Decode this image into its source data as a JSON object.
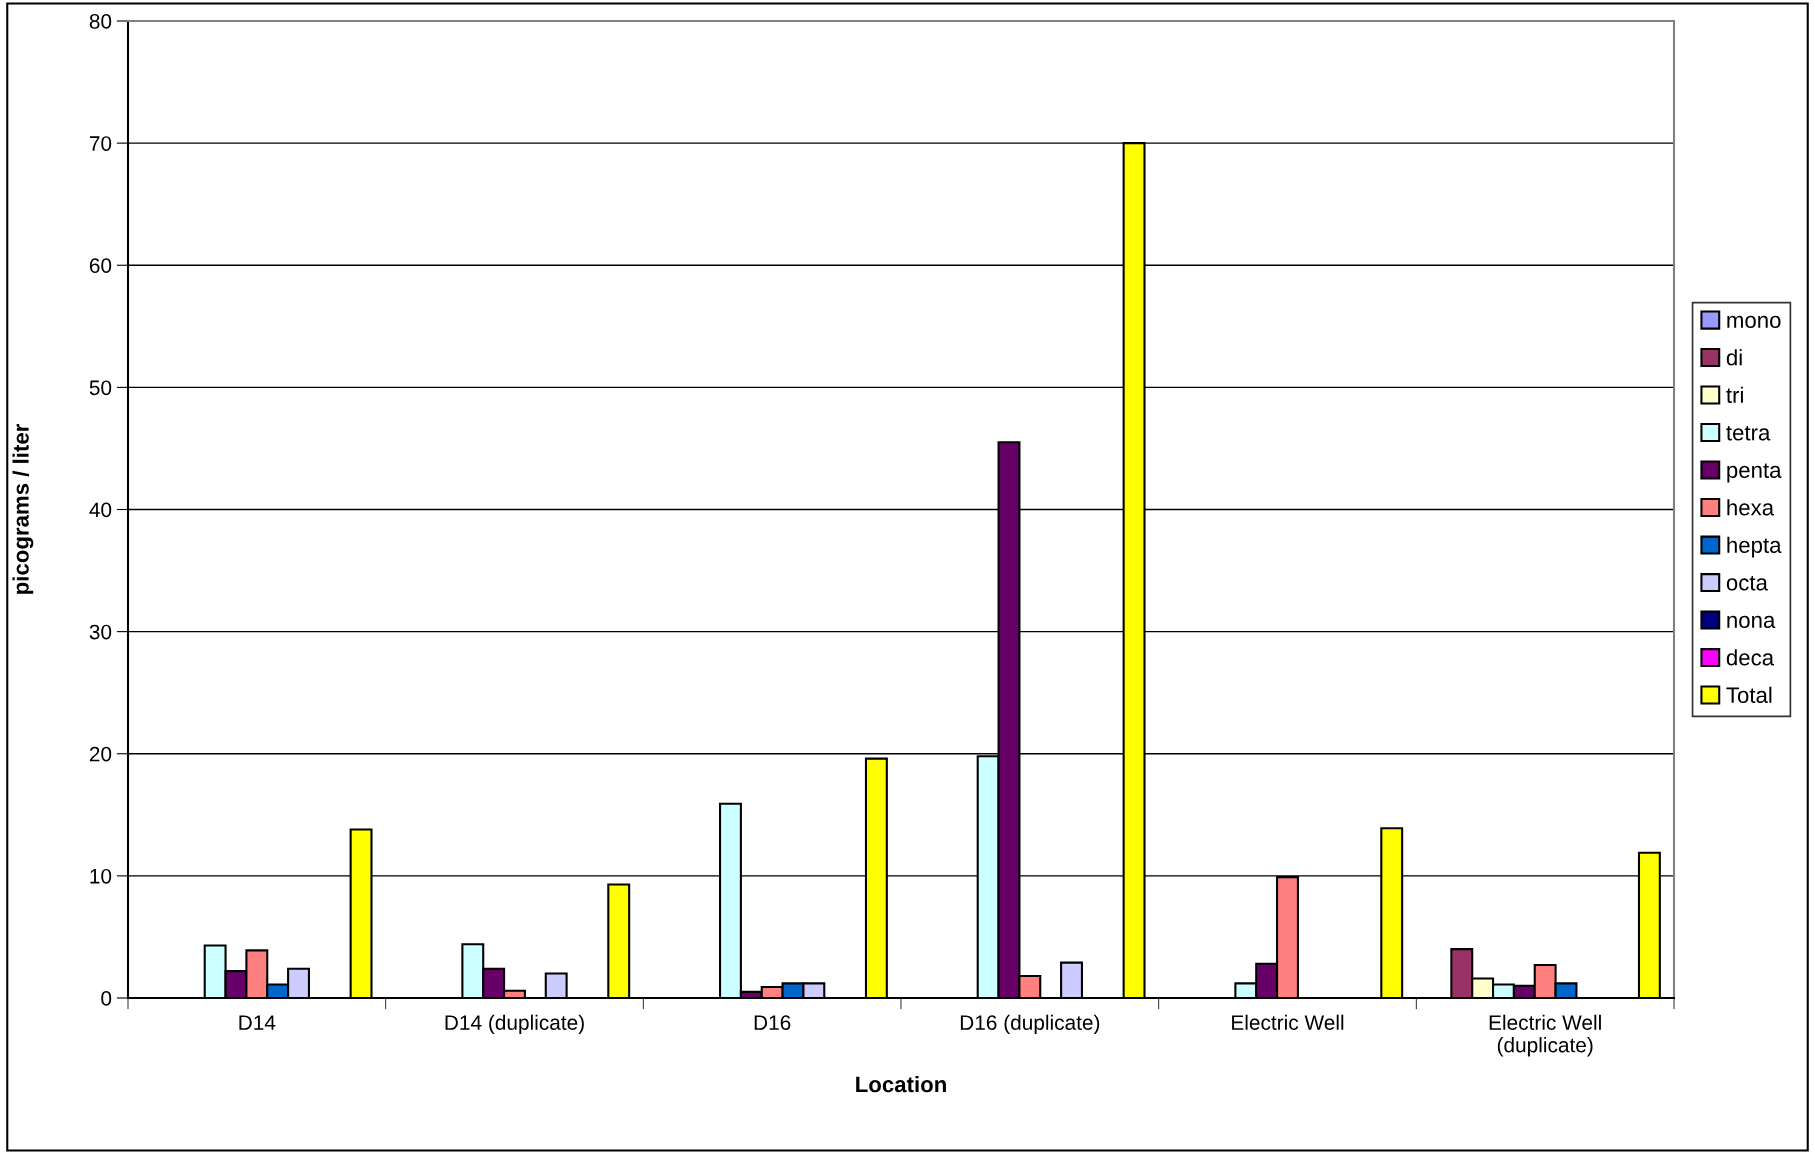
{
  "chart_data": {
    "type": "bar",
    "xlabel": "Location",
    "ylabel": "picograms / liter",
    "categories": [
      "D14",
      "D14 (duplicate)",
      "D16",
      "D16 (duplicate)",
      "Electric Well",
      "Electric Well\n(duplicate)"
    ],
    "series": [
      {
        "name": "mono",
        "color": "#9999ff",
        "values": [
          null,
          null,
          null,
          null,
          null,
          null
        ]
      },
      {
        "name": "di",
        "color": "#993366",
        "values": [
          null,
          null,
          null,
          null,
          null,
          4.0
        ]
      },
      {
        "name": "tri",
        "color": "#ffffcc",
        "values": [
          null,
          null,
          null,
          null,
          null,
          1.6
        ]
      },
      {
        "name": "tetra",
        "color": "#ccffff",
        "values": [
          4.3,
          4.4,
          15.9,
          19.8,
          1.2,
          1.1
        ]
      },
      {
        "name": "penta",
        "color": "#660066",
        "values": [
          2.2,
          2.4,
          0.5,
          45.5,
          2.8,
          1.0
        ]
      },
      {
        "name": "hexa",
        "color": "#ff8080",
        "values": [
          3.9,
          0.6,
          0.9,
          1.8,
          9.9,
          2.7
        ]
      },
      {
        "name": "hepta",
        "color": "#0066cc",
        "values": [
          1.1,
          null,
          1.2,
          null,
          null,
          1.2
        ]
      },
      {
        "name": "octa",
        "color": "#ccccff",
        "values": [
          2.4,
          2.0,
          1.2,
          2.9,
          null,
          null
        ]
      },
      {
        "name": "nona",
        "color": "#000080",
        "values": [
          null,
          null,
          null,
          null,
          null,
          null
        ]
      },
      {
        "name": "deca",
        "color": "#ff00ff",
        "values": [
          null,
          null,
          null,
          null,
          null,
          null
        ]
      },
      {
        "name": "Total",
        "color": "#ffff00",
        "values": [
          13.8,
          9.3,
          19.6,
          70.0,
          13.9,
          11.9
        ]
      }
    ],
    "ylim": [
      0,
      80
    ],
    "yticks": [
      0,
      10,
      20,
      30,
      40,
      50,
      60,
      70,
      80
    ],
    "grid": "y",
    "legend": "right"
  }
}
